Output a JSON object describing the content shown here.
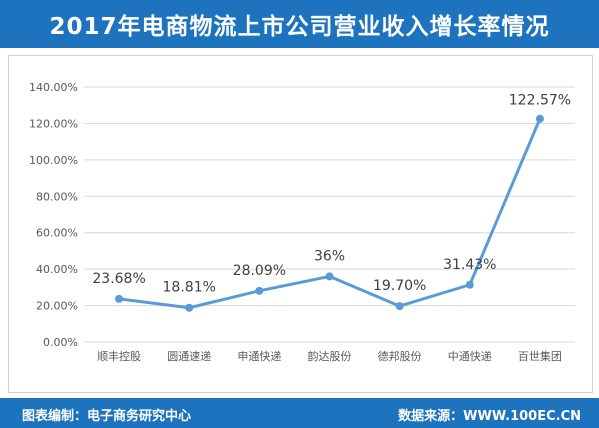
{
  "title": "2017年电商物流上市公司营业收入增长率情况",
  "footer": {
    "left": "图表编制：电子商务研究中心",
    "right": "数据来源：WWW.100EC.CN"
  },
  "colors": {
    "header": "#1e73be",
    "line": "#5b9bd5",
    "grid": "#d9d9d9",
    "axis_text": "#595959"
  },
  "chart_data": {
    "type": "line",
    "title": "2017年电商物流上市公司营业收入增长率情况",
    "xlabel": "",
    "ylabel": "",
    "categories": [
      "顺丰控股",
      "圆通速递",
      "申通快递",
      "韵达股份",
      "德邦股份",
      "中通快递",
      "百世集团"
    ],
    "series": [
      {
        "values": [
          23.68,
          18.81,
          28.09,
          36,
          19.7,
          31.43,
          122.57
        ],
        "labels": [
          "23.68%",
          "18.81%",
          "28.09%",
          "36%",
          "19.70%",
          "31.43%",
          "122.57%"
        ]
      }
    ],
    "ylim": [
      0,
      140
    ],
    "yticks": [
      0,
      20,
      40,
      60,
      80,
      100,
      120,
      140
    ],
    "ytick_labels": [
      "0.00%",
      "20.00%",
      "40.00%",
      "60.00%",
      "80.00%",
      "100.00%",
      "120.00%",
      "140.00%"
    ],
    "grid": true,
    "legend": "none"
  }
}
